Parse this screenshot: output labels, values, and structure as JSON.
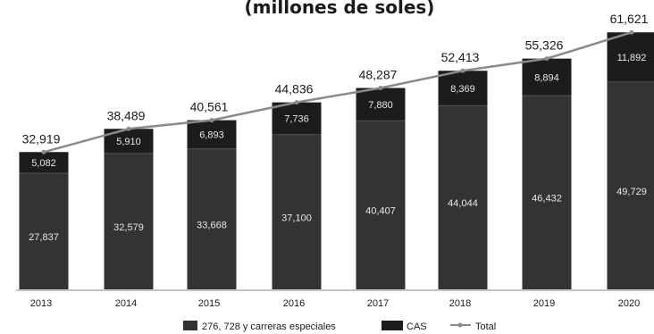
{
  "chart_data": {
    "type": "bar",
    "stacked": true,
    "title": "(millones de soles)",
    "categories": [
      "2013",
      "2014",
      "2015",
      "2016",
      "2017",
      "2018",
      "2019",
      "2020"
    ],
    "series": [
      {
        "name": "276, 728 y carreras especiales",
        "values": [
          27837,
          32579,
          33668,
          37100,
          40407,
          44044,
          46432,
          49729
        ]
      },
      {
        "name": "CAS",
        "values": [
          5082,
          5910,
          6893,
          7736,
          7880,
          8369,
          8894,
          11892
        ]
      },
      {
        "name": "Total",
        "type": "line",
        "values": [
          32919,
          38489,
          40561,
          44836,
          48287,
          52413,
          55326,
          61621
        ]
      }
    ],
    "labels": {
      "series_0": [
        "27,837",
        "32,579",
        "33,668",
        "37,100",
        "40,407",
        "44,044",
        "46,432",
        "49,729"
      ],
      "series_1": [
        "5,082",
        "5,910",
        "6,893",
        "7,736",
        "7,880",
        "8,369",
        "8,894",
        "11,892"
      ],
      "total": [
        "32,919",
        "38,489",
        "40,561",
        "44,836",
        "48,287",
        "52,413",
        "55,326",
        "61,621"
      ]
    },
    "legend": [
      "276, 728 y carreras especiales",
      "CAS",
      "Total"
    ],
    "legend_position": "bottom",
    "ylim": [
      0,
      62000
    ],
    "grid": false,
    "colors": {
      "base": "#333333",
      "cas": "#1c1c1c",
      "line": "#8a8a8a",
      "text_on_bar": "#e8e8e8"
    }
  }
}
